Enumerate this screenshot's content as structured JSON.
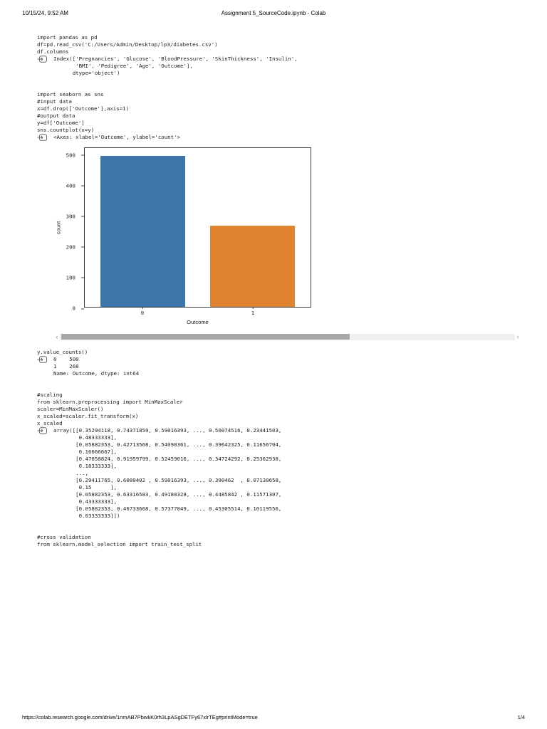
{
  "header": {
    "date": "10/15/24, 9:52 AM",
    "title": "Assignment 5_SourceCode.ipynb - Colab"
  },
  "footer": {
    "url": "https://colab.research.google.com/drive/1nmAB7PbwkK0rh3LpASgDETFy67xlrTEg#printMode=true",
    "page": "1/4"
  },
  "cells": [
    {
      "type": "code",
      "code": "import pandas as pd"
    },
    {
      "type": "code",
      "code": "df=pd.read_csv('C:/Users/Admin/Desktop/lp3/diabetes.csv')"
    },
    {
      "type": "code",
      "code": "df.columns"
    },
    {
      "type": "output",
      "text": "Index(['Pregnancies', 'Glucose', 'BloodPressure', 'SkinThickness', 'Insulin',\n       'BMI', 'Pedigree', 'Age', 'Outcome'],\n      dtype='object')"
    },
    {
      "type": "code",
      "code": "import seaborn as sns"
    },
    {
      "type": "code",
      "code": "#input data\nx=df.drop(['Outcome'],axis=1)\n#output data\ny=df['Outcome']"
    },
    {
      "type": "code",
      "code": "sns.countplot(x=y)"
    },
    {
      "type": "output",
      "text": "<Axes: xlabel='Outcome', ylabel='count'>"
    },
    {
      "type": "code",
      "code": "y.value_counts()"
    },
    {
      "type": "output",
      "text": "0    500\n1    268\nName: Outcome, dtype: int64"
    },
    {
      "type": "code",
      "code": "#scaling\nfrom sklearn.preprocessing import MinMaxScaler"
    },
    {
      "type": "code",
      "code": "scaler=MinMaxScaler()\nx_scaled=scaler.fit_transform(x)"
    },
    {
      "type": "code",
      "code": "x_scaled"
    },
    {
      "type": "output",
      "text": "array([[0.35294118, 0.74371859, 0.59016393, ..., 0.50074516, 0.23441503,\n        0.48333333],\n       [0.05882353, 0.42713568, 0.54098361, ..., 0.39642325, 0.11656704,\n        0.16666667],\n       [0.47058824, 0.91959799, 0.52459016, ..., 0.34724292, 0.25362938,\n        0.18333333],\n       ...,\n       [0.29411765, 0.6080402 , 0.59016393, ..., 0.390462  , 0.07130658,\n        0.15      ],\n       [0.05882353, 0.63316583, 0.49180328, ..., 0.4485842 , 0.11571307,\n        0.43333333],\n       [0.05882353, 0.46733668, 0.57377049, ..., 0.45305514, 0.10119556,\n        0.03333333]])"
    },
    {
      "type": "code",
      "code": "#cross validation\nfrom sklearn.model_selection import train_test_split"
    }
  ],
  "chart_data": {
    "type": "bar",
    "categories": [
      "0",
      "1"
    ],
    "values": [
      500,
      268
    ],
    "title": "",
    "xlabel": "Outcome",
    "ylabel": "count",
    "ylim": [
      0,
      525
    ],
    "yticks": [
      0,
      100,
      200,
      300,
      400,
      500
    ],
    "bar_colors": [
      "#3b75a9",
      "#e0832e"
    ],
    "legend": "none",
    "grid": false,
    "axes_repr": "<Axes: xlabel='Outcome', ylabel='count'>"
  }
}
